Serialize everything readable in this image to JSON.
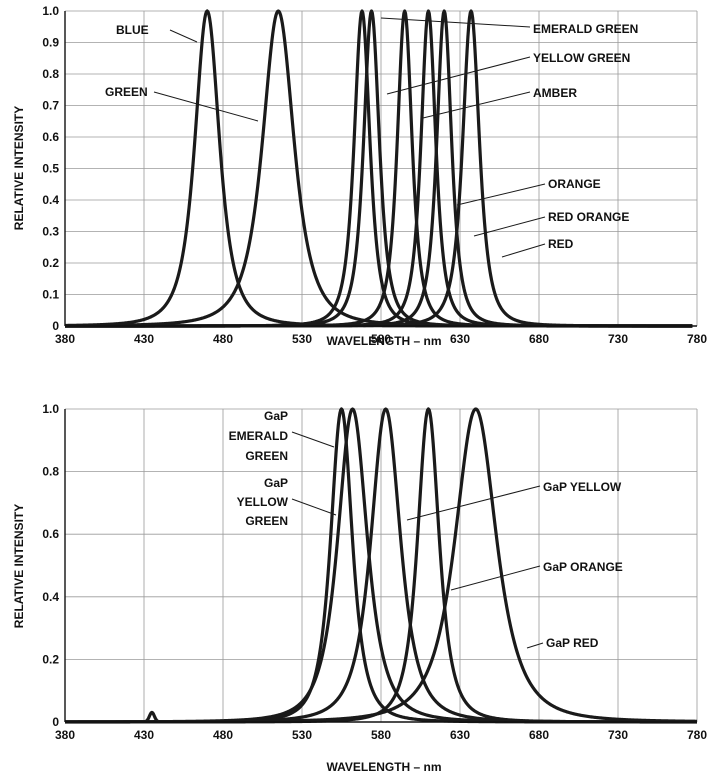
{
  "chart_data": [
    {
      "type": "line",
      "title": "",
      "xlabel": "WAVELENGTH – nm",
      "ylabel": "RELATIVE INTENSITY",
      "xlim": [
        380,
        780
      ],
      "ylim": [
        0,
        1.0
      ],
      "x_ticks": [
        "380",
        "430",
        "480",
        "530",
        "580",
        "630",
        "680",
        "730",
        "780"
      ],
      "y_ticks": [
        "0",
        "0.1",
        "0.2",
        "0.3",
        "0.4",
        "0.5",
        "0.6",
        "0.7",
        "0.8",
        "0.9",
        "1.0"
      ],
      "grid": true,
      "series": [
        {
          "name": "BLUE",
          "peak_nm": 470,
          "fwhm_nm": 25
        },
        {
          "name": "GREEN",
          "peak_nm": 515,
          "fwhm_nm": 32
        },
        {
          "name": "EMERALD GREEN",
          "peak_nm": 568,
          "fwhm_nm": 16
        },
        {
          "name": "YELLOW GREEN",
          "peak_nm": 574,
          "fwhm_nm": 16
        },
        {
          "name": "AMBER",
          "peak_nm": 595,
          "fwhm_nm": 15
        },
        {
          "name": "ORANGE",
          "peak_nm": 610,
          "fwhm_nm": 15
        },
        {
          "name": "RED ORANGE",
          "peak_nm": 620,
          "fwhm_nm": 15
        },
        {
          "name": "RED",
          "peak_nm": 637,
          "fwhm_nm": 17
        }
      ]
    },
    {
      "type": "line",
      "title": "",
      "xlabel": "WAVELENGTH – nm",
      "ylabel": "RELATIVE INTENSITY",
      "xlim": [
        380,
        780
      ],
      "ylim": [
        0,
        1.0
      ],
      "x_ticks": [
        "380",
        "430",
        "480",
        "530",
        "580",
        "630",
        "680",
        "730",
        "780"
      ],
      "y_ticks": [
        "0",
        "0.2",
        "0.4",
        "0.6",
        "0.8",
        "1.0"
      ],
      "grid": true,
      "series": [
        {
          "name": "GaP EMERALD GREEN",
          "peak_nm": 555,
          "fwhm_nm": 22
        },
        {
          "name": "GaP YELLOW GREEN",
          "peak_nm": 562,
          "fwhm_nm": 30
        },
        {
          "name": "GaP YELLOW",
          "peak_nm": 583,
          "fwhm_nm": 30
        },
        {
          "name": "GaP ORANGE",
          "peak_nm": 610,
          "fwhm_nm": 22
        },
        {
          "name": "GaP RED",
          "peak_nm": 640,
          "fwhm_nm": 42,
          "small_peak_nm": 435,
          "small_peak_value": 0.03
        }
      ]
    }
  ],
  "annotations_top": {
    "blue": "BLUE",
    "green": "GREEN",
    "emerald_green": "EMERALD GREEN",
    "yellow_green": "YELLOW GREEN",
    "amber": "AMBER",
    "orange": "ORANGE",
    "red_orange": "RED ORANGE",
    "red": "RED"
  },
  "annotations_bottom": {
    "gap_emerald_1": "GaP",
    "gap_emerald_2": "EMERALD",
    "gap_emerald_3": "GREEN",
    "gap_yg_1": "GaP",
    "gap_yg_2": "YELLOW",
    "gap_yg_3": "GREEN",
    "gap_yellow": "GaP YELLOW",
    "gap_orange": "GaP ORANGE",
    "gap_red": "GaP RED"
  },
  "colors": {
    "curve": "#1a1a1a",
    "grid": "#9a9a9a"
  }
}
